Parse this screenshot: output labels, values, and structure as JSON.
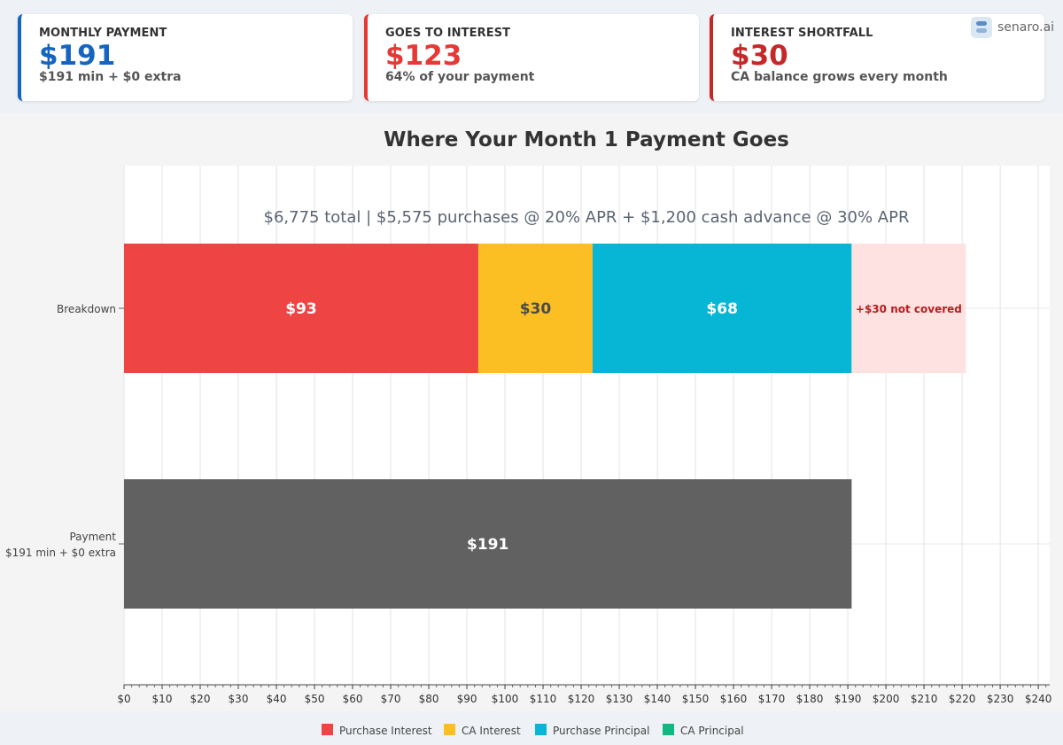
{
  "cards": [
    {
      "label": "MONTHLY PAYMENT",
      "value": "$191",
      "sub": "$191 min + $0 extra",
      "color": "#1565c0"
    },
    {
      "label": "GOES TO INTEREST",
      "value": "$123",
      "sub": "64% of your payment",
      "color": "#e53935"
    },
    {
      "label": "INTEREST SHORTFALL",
      "value": "$30",
      "sub": "CA balance grows every month",
      "color": "#c62828"
    }
  ],
  "brand": {
    "text": "senaro.ai",
    "icon": "senaro-logo-icon"
  },
  "chart_data": {
    "type": "bar",
    "orientation": "horizontal",
    "stacked": true,
    "title": "Where Your Month 1 Payment Goes",
    "subtitle": "$6,775 total  |  $5,575 purchases @ 20% APR  +  $1,200 cash advance @ 30% APR",
    "categories": [
      "Breakdown",
      "Payment\n$191 min + $0 extra"
    ],
    "series": [
      {
        "name": "Purchase Interest",
        "color": "#ef4444",
        "values": [
          93,
          0
        ],
        "labels": [
          "$93",
          ""
        ]
      },
      {
        "name": "CA Interest",
        "color": "#fbbf24",
        "values": [
          30,
          0
        ],
        "labels": [
          "$30",
          ""
        ]
      },
      {
        "name": "Purchase Principal",
        "color": "#06b6d4",
        "values": [
          68,
          0
        ],
        "labels": [
          "$68",
          ""
        ]
      },
      {
        "name": "CA Principal",
        "color": "#10b981",
        "values": [
          0,
          0
        ],
        "labels": [
          "",
          ""
        ]
      }
    ],
    "shortfall": {
      "category": "Breakdown",
      "start": 191,
      "value": 30,
      "label": "+$30 not covered",
      "fill": "#fee2e2",
      "text_color": "#b91c1c"
    },
    "payment": {
      "category": "Payment\n$191 min + $0 extra",
      "value": 191,
      "label": "$191",
      "color": "#616161"
    },
    "x_ticks": [
      0,
      10,
      20,
      30,
      40,
      50,
      60,
      70,
      80,
      90,
      100,
      110,
      120,
      130,
      140,
      150,
      160,
      170,
      180,
      190,
      200,
      210,
      220,
      230,
      240
    ],
    "x_tick_labels": [
      "$0",
      "$10",
      "$20",
      "$30",
      "$40",
      "$50",
      "$60",
      "$70",
      "$80",
      "$90",
      "$100",
      "$110",
      "$120",
      "$130",
      "$140",
      "$150",
      "$160",
      "$170",
      "$180",
      "$190",
      "$200",
      "$210",
      "$220",
      "$230",
      "$240"
    ],
    "xlim": [
      0,
      243
    ],
    "grid": true,
    "legend_placement": "bottom"
  }
}
